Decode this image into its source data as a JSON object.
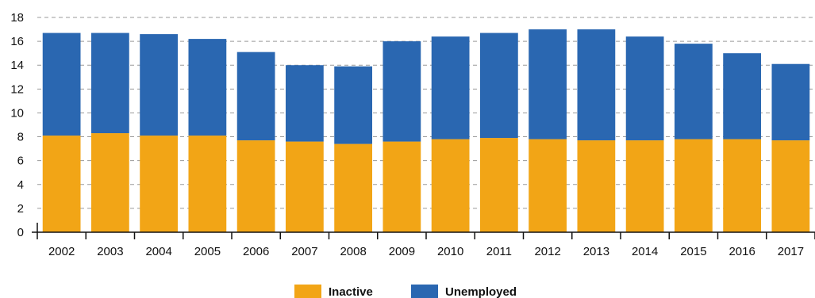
{
  "chart_data": {
    "type": "bar",
    "stacked": true,
    "categories": [
      "2002",
      "2003",
      "2004",
      "2005",
      "2006",
      "2007",
      "2008",
      "2009",
      "2010",
      "2011",
      "2012",
      "2013",
      "2014",
      "2015",
      "2016",
      "2017"
    ],
    "series": [
      {
        "name": "Inactive",
        "color": "#F2A516",
        "values": [
          8.1,
          8.3,
          8.1,
          8.1,
          7.7,
          7.6,
          7.4,
          7.6,
          7.8,
          7.9,
          7.8,
          7.7,
          7.7,
          7.8,
          7.8,
          7.7
        ]
      },
      {
        "name": "Unemployed",
        "color": "#2A67B1",
        "values": [
          8.6,
          8.4,
          8.5,
          8.1,
          7.4,
          6.4,
          6.5,
          8.4,
          8.6,
          8.8,
          9.2,
          9.3,
          8.7,
          8.0,
          7.2,
          6.4
        ]
      }
    ],
    "ylim": [
      0,
      18
    ],
    "yticks": [
      0,
      2,
      4,
      6,
      8,
      10,
      12,
      14,
      16,
      18
    ],
    "grid": true,
    "legend_position": "bottom-center"
  }
}
